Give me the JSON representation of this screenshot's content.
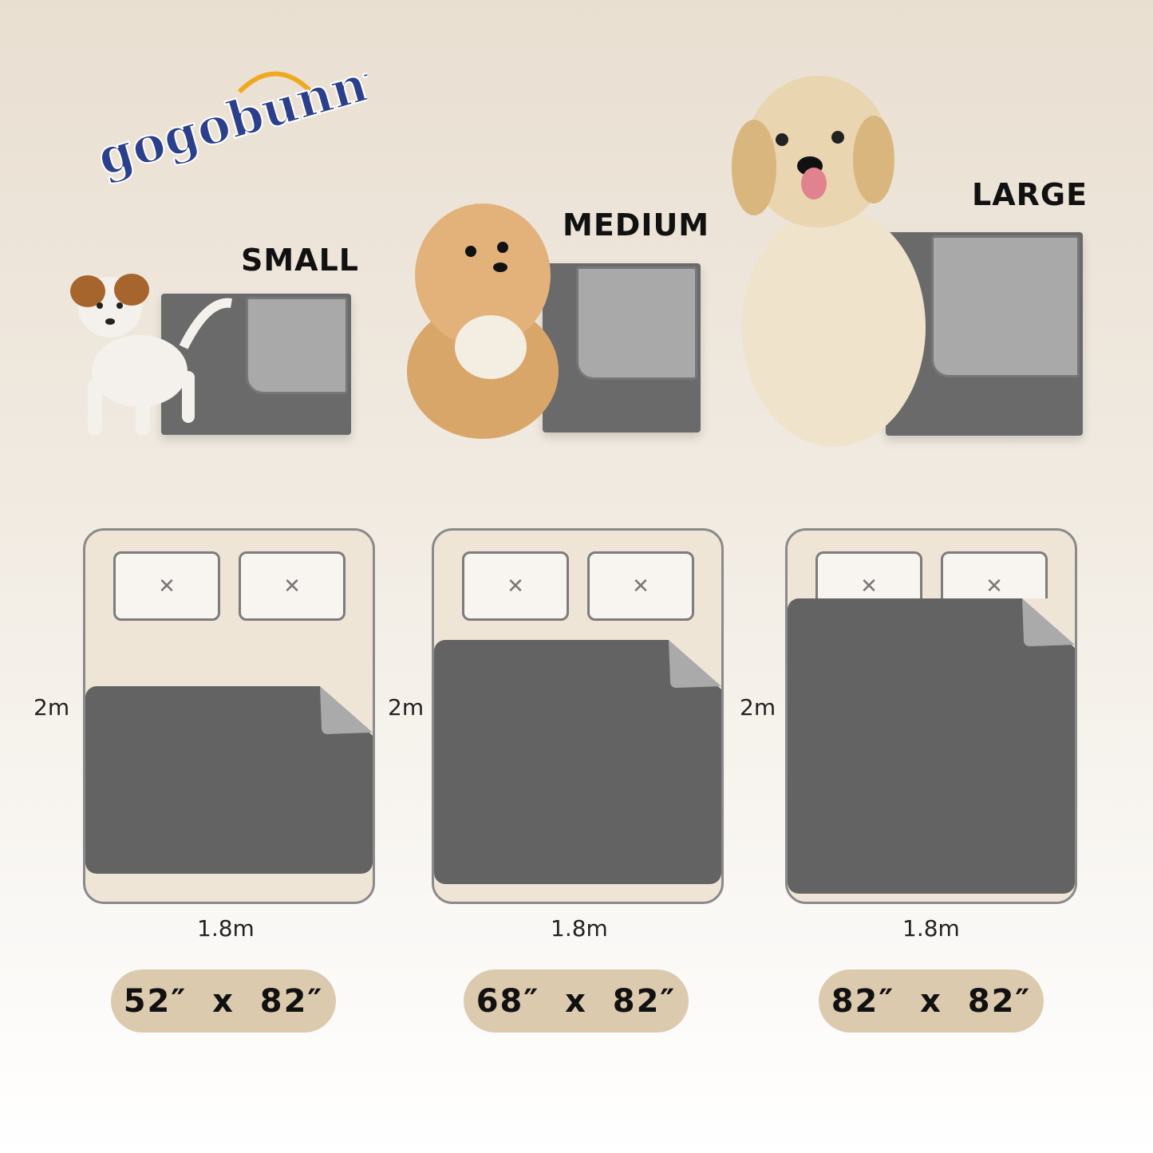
{
  "brand": {
    "logo_text": "gogobunny",
    "colors": {
      "primary": "#2b3f8c",
      "accent": "#f0a820"
    }
  },
  "sizes": [
    {
      "name": "SMALL",
      "height_label": "2m",
      "width_label": "1.8m",
      "dimensions": "52″  x  82″"
    },
    {
      "name": "MEDIUM",
      "height_label": "2m",
      "width_label": "1.8m",
      "dimensions": "68″  x  82″"
    },
    {
      "name": "LARGE",
      "height_label": "2m",
      "width_label": "1.8m",
      "dimensions": "82″  x  82″"
    }
  ],
  "pillow_icon": "close-icon",
  "colors": {
    "pad_dark": "#636363",
    "pad_light": "#a9a9a9",
    "bed": "#efe5d7",
    "pill": "#dccaae"
  }
}
